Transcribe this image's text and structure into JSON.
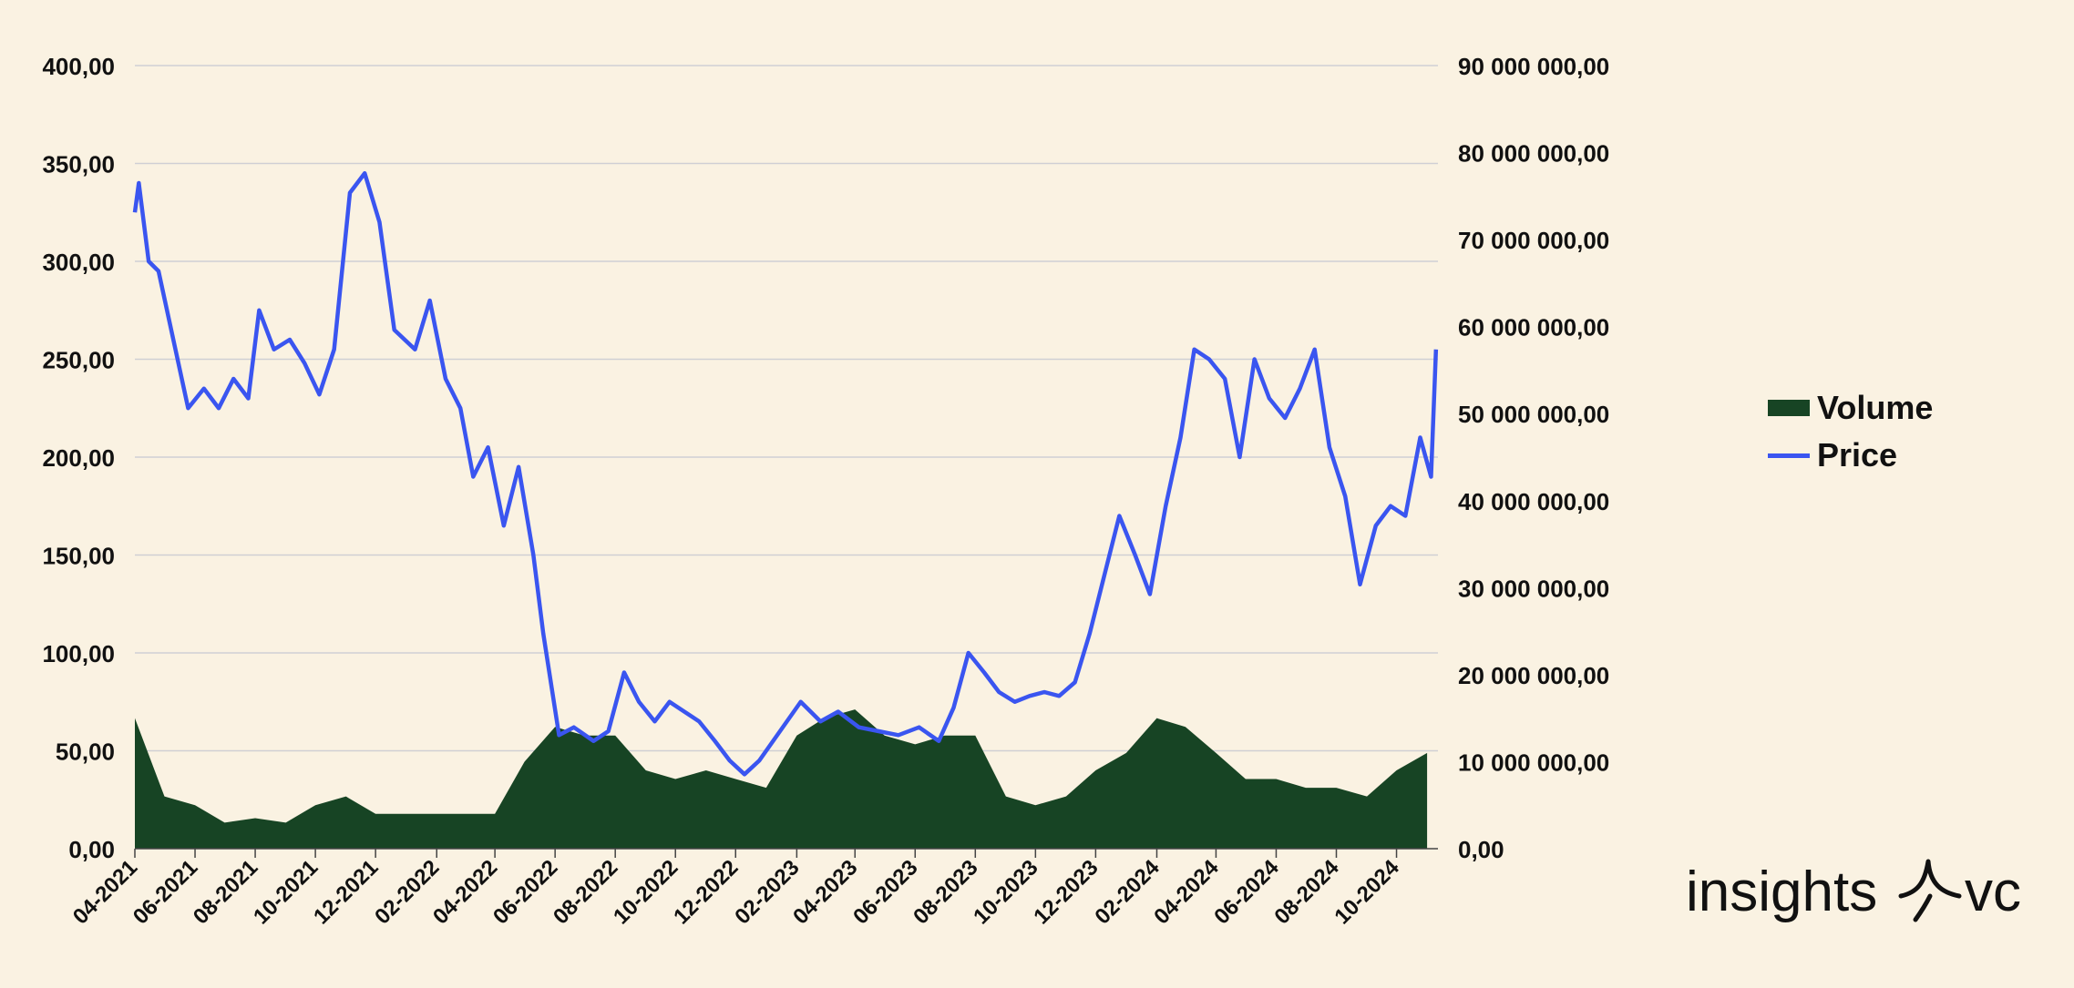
{
  "chart_data": {
    "type": "line",
    "title": "",
    "x_axis": {
      "tick_labels": [
        "04-2021",
        "06-2021",
        "08-2021",
        "10-2021",
        "12-2021",
        "02-2022",
        "04-2022",
        "06-2022",
        "08-2022",
        "10-2022",
        "12-2022",
        "02-2023",
        "04-2023",
        "06-2023",
        "08-2023",
        "10-2023",
        "12-2023",
        "02-2024",
        "04-2024",
        "06-2024",
        "08-2024",
        "10-2024"
      ],
      "range": [
        "2021-04",
        "2024-11"
      ]
    },
    "y_left": {
      "ticks": [
        0,
        50,
        100,
        150,
        200,
        250,
        300,
        350,
        400
      ],
      "tick_labels": [
        "0,00",
        "50,00",
        "100,00",
        "150,00",
        "200,00",
        "250,00",
        "300,00",
        "350,00",
        "400,00"
      ],
      "range": [
        0,
        400
      ]
    },
    "y_right": {
      "ticks": [
        0,
        10000000,
        20000000,
        30000000,
        40000000,
        50000000,
        60000000,
        70000000,
        80000000,
        90000000
      ],
      "tick_labels": [
        "0,00",
        "10 000 000,00",
        "20 000 000,00",
        "30 000 000,00",
        "40 000 000,00",
        "50 000 000,00",
        "60 000 000,00",
        "70 000 000,00",
        "80 000 000,00",
        "90 000 000,00"
      ],
      "range": [
        0,
        90000000
      ]
    },
    "grid": true,
    "legend_position": "right",
    "series": [
      {
        "name": "Volume",
        "type": "area",
        "axis": "right",
        "color": "#174424",
        "x": [
          "2021-04-01",
          "2021-05-01",
          "2021-06-01",
          "2021-07-01",
          "2021-08-01",
          "2021-09-01",
          "2021-10-01",
          "2021-11-01",
          "2021-12-01",
          "2022-01-01",
          "2022-02-01",
          "2022-03-01",
          "2022-04-01",
          "2022-05-01",
          "2022-06-01",
          "2022-07-01",
          "2022-08-01",
          "2022-09-01",
          "2022-10-01",
          "2022-11-01",
          "2022-12-01",
          "2023-01-01",
          "2023-02-01",
          "2023-03-01",
          "2023-04-01",
          "2023-05-01",
          "2023-06-01",
          "2023-07-01",
          "2023-08-01",
          "2023-09-01",
          "2023-10-01",
          "2023-11-01",
          "2023-12-01",
          "2024-01-01",
          "2024-02-01",
          "2024-03-01",
          "2024-04-01",
          "2024-05-01",
          "2024-06-01",
          "2024-07-01",
          "2024-08-01",
          "2024-09-01",
          "2024-10-01",
          "2024-11-01"
        ],
        "values": [
          15000000,
          6000000,
          5000000,
          3000000,
          3500000,
          3000000,
          5000000,
          6000000,
          4000000,
          4000000,
          4000000,
          4000000,
          4000000,
          10000000,
          14000000,
          13000000,
          13000000,
          9000000,
          8000000,
          9000000,
          8000000,
          7000000,
          13000000,
          15000000,
          16000000,
          13000000,
          12000000,
          13000000,
          13000000,
          6000000,
          5000000,
          6000000,
          9000000,
          11000000,
          15000000,
          14000000,
          11000000,
          8000000,
          8000000,
          7000000,
          7000000,
          6000000,
          9000000,
          11000000
        ]
      },
      {
        "name": "Price",
        "type": "line",
        "axis": "left",
        "color": "#3a55f0",
        "x": [
          "2021-04-01",
          "2021-04-05",
          "2021-04-15",
          "2021-04-25",
          "2021-05-10",
          "2021-05-25",
          "2021-06-10",
          "2021-06-25",
          "2021-07-10",
          "2021-07-25",
          "2021-08-05",
          "2021-08-20",
          "2021-09-05",
          "2021-09-20",
          "2021-10-05",
          "2021-10-20",
          "2021-11-05",
          "2021-11-20",
          "2021-12-05",
          "2021-12-20",
          "2022-01-10",
          "2022-01-25",
          "2022-02-10",
          "2022-02-25",
          "2022-03-10",
          "2022-03-25",
          "2022-04-10",
          "2022-04-25",
          "2022-05-10",
          "2022-05-20",
          "2022-06-05",
          "2022-06-20",
          "2022-07-10",
          "2022-07-25",
          "2022-08-10",
          "2022-08-25",
          "2022-09-10",
          "2022-09-25",
          "2022-10-10",
          "2022-10-25",
          "2022-11-10",
          "2022-11-25",
          "2022-12-10",
          "2022-12-25",
          "2023-01-15",
          "2023-02-05",
          "2023-02-25",
          "2023-03-15",
          "2023-04-05",
          "2023-04-25",
          "2023-05-15",
          "2023-06-05",
          "2023-06-25",
          "2023-07-10",
          "2023-07-25",
          "2023-08-10",
          "2023-08-25",
          "2023-09-10",
          "2023-09-25",
          "2023-10-10",
          "2023-10-25",
          "2023-11-10",
          "2023-11-25",
          "2023-12-10",
          "2023-12-25",
          "2024-01-10",
          "2024-01-25",
          "2024-02-10",
          "2024-02-25",
          "2024-03-10",
          "2024-03-25",
          "2024-04-10",
          "2024-04-25",
          "2024-05-10",
          "2024-05-25",
          "2024-06-10",
          "2024-06-25",
          "2024-07-10",
          "2024-07-25",
          "2024-08-10",
          "2024-08-25",
          "2024-09-10",
          "2024-09-25",
          "2024-10-10",
          "2024-10-25",
          "2024-11-05",
          "2024-11-10"
        ],
        "values": [
          325,
          340,
          300,
          295,
          260,
          225,
          235,
          225,
          240,
          230,
          275,
          255,
          260,
          248,
          232,
          255,
          335,
          345,
          320,
          265,
          255,
          280,
          240,
          225,
          190,
          205,
          165,
          195,
          150,
          110,
          58,
          62,
          55,
          60,
          90,
          75,
          65,
          75,
          70,
          65,
          55,
          45,
          38,
          45,
          60,
          75,
          65,
          70,
          62,
          60,
          58,
          62,
          55,
          72,
          100,
          90,
          80,
          75,
          78,
          80,
          78,
          85,
          110,
          140,
          170,
          150,
          130,
          175,
          210,
          255,
          250,
          240,
          200,
          250,
          230,
          220,
          235,
          255,
          205,
          180,
          135,
          165,
          175,
          170,
          210,
          190,
          255
        ]
      }
    ]
  },
  "legend": {
    "volume_label": "Volume",
    "price_label": "Price"
  },
  "logo": {
    "text": "insights",
    "suffix": "vc"
  }
}
